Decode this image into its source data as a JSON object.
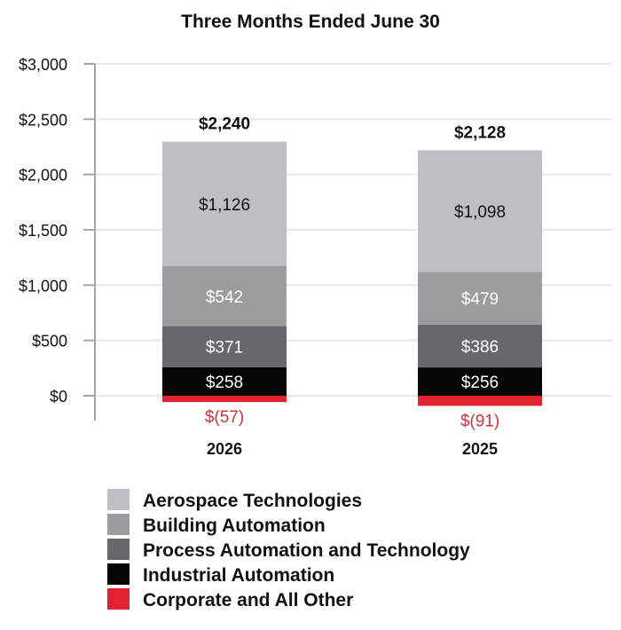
{
  "chart_data": {
    "type": "bar",
    "title": "Three Months Ended June 30",
    "xlabel": "",
    "ylabel": "",
    "stacked": true,
    "categories": [
      "2026",
      "2025"
    ],
    "ylim": [
      0,
      3000
    ],
    "yticks": [
      0,
      500,
      1000,
      1500,
      2000,
      2500,
      3000
    ],
    "ytick_labels": [
      "$0",
      "$500",
      "$1,000",
      "$1,500",
      "$2,000",
      "$2,500",
      "$3,000"
    ],
    "grid": true,
    "legend_position": "bottom",
    "totals": [
      2240,
      2128
    ],
    "total_labels": [
      "$2,240",
      "$2,128"
    ],
    "series": [
      {
        "name": "Corporate and All Other",
        "values": [
          -57,
          -91
        ],
        "labels": [
          "$(57)",
          "$(91)"
        ],
        "color": "#e1232f",
        "label_color": "#c9353b"
      },
      {
        "name": "Industrial Automation",
        "values": [
          258,
          256
        ],
        "labels": [
          "$258",
          "$256"
        ],
        "color": "#050505",
        "label_color": "#ffffff"
      },
      {
        "name": "Process Automation and Technology",
        "values": [
          371,
          386
        ],
        "labels": [
          "$371",
          "$386"
        ],
        "color": "#66686d",
        "label_color": "#ffffff"
      },
      {
        "name": "Building Automation",
        "values": [
          542,
          479
        ],
        "labels": [
          "$542",
          "$479"
        ],
        "color": "#9c9ca0",
        "label_color": "#ffffff"
      },
      {
        "name": "Aerospace Technologies",
        "values": [
          1126,
          1098
        ],
        "labels": [
          "$1,126",
          "$1,098"
        ],
        "color": "#bebfc4",
        "label_color": "#111111"
      }
    ],
    "legend_order": [
      "Aerospace Technologies",
      "Building Automation",
      "Process Automation and Technology",
      "Industrial Automation",
      "Corporate and All Other"
    ]
  }
}
